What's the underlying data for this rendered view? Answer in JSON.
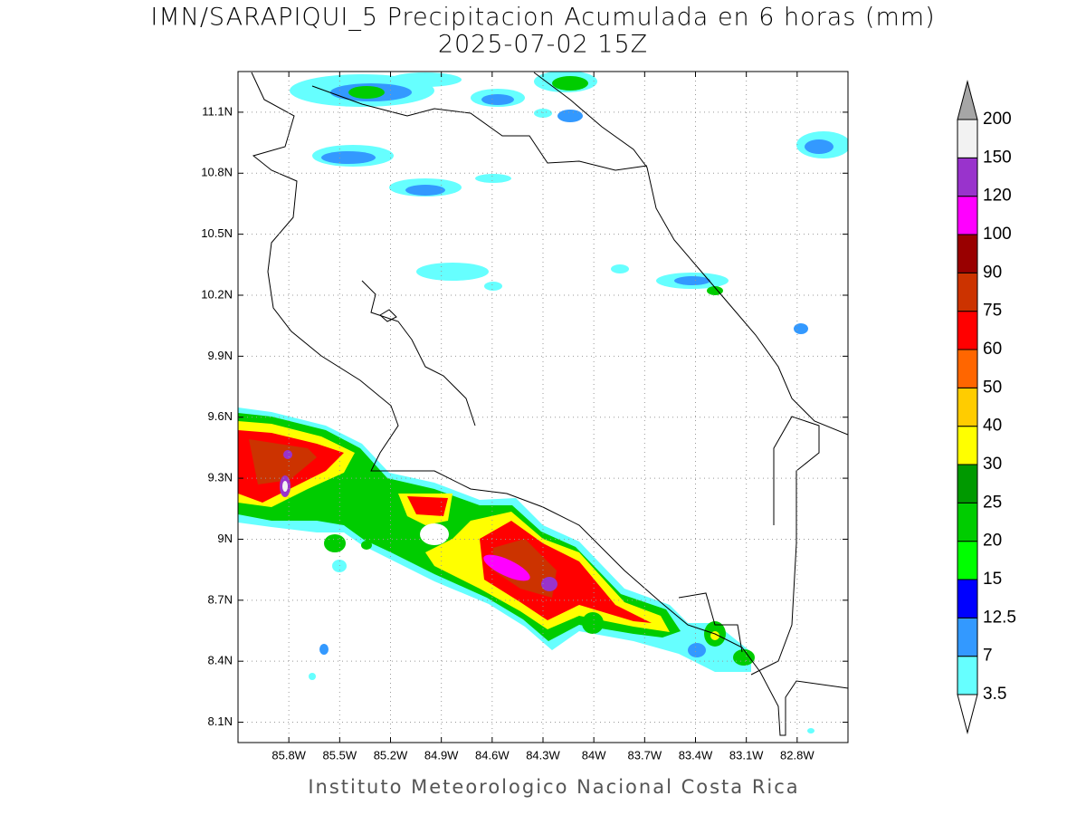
{
  "chart_data": {
    "type": "map",
    "title": "IMN/SARAPIQUI_5 Precipitacion Acumulada en 6 horas (mm)",
    "subtitle": "2025-07-02 15Z",
    "footer": "Instituto Meteorologico Nacional Costa Rica",
    "xlim": [
      -86.1,
      -82.5
    ],
    "ylim": [
      8.0,
      11.3
    ],
    "xticks": [
      {
        "value": -85.8,
        "label": "85.8W"
      },
      {
        "value": -85.5,
        "label": "85.5W"
      },
      {
        "value": -85.2,
        "label": "85.2W"
      },
      {
        "value": -84.9,
        "label": "84.9W"
      },
      {
        "value": -84.6,
        "label": "84.6W"
      },
      {
        "value": -84.3,
        "label": "84.3W"
      },
      {
        "value": -84.0,
        "label": "84W"
      },
      {
        "value": -83.7,
        "label": "83.7W"
      },
      {
        "value": -83.4,
        "label": "83.4W"
      },
      {
        "value": -83.1,
        "label": "83.1W"
      },
      {
        "value": -82.8,
        "label": "82.8W"
      }
    ],
    "yticks": [
      {
        "value": 8.1,
        "label": "8.1N"
      },
      {
        "value": 8.4,
        "label": "8.4N"
      },
      {
        "value": 8.7,
        "label": "8.7N"
      },
      {
        "value": 9.0,
        "label": "9N"
      },
      {
        "value": 9.3,
        "label": "9.3N"
      },
      {
        "value": 9.6,
        "label": "9.6N"
      },
      {
        "value": 9.9,
        "label": "9.9N"
      },
      {
        "value": 10.2,
        "label": "10.2N"
      },
      {
        "value": 10.5,
        "label": "10.5N"
      },
      {
        "value": 10.8,
        "label": "10.8N"
      },
      {
        "value": 11.1,
        "label": "11.1N"
      }
    ],
    "grid": true,
    "colorbar": {
      "levels": [
        3.5,
        7,
        12.5,
        15,
        20,
        25,
        30,
        40,
        50,
        60,
        75,
        90,
        100,
        120,
        150,
        200
      ],
      "colors": [
        "#66ffff",
        "#3399ff",
        "#0000ff",
        "#00ff00",
        "#00cc00",
        "#009900",
        "#ffff00",
        "#ffcc00",
        "#ff6600",
        "#ff0000",
        "#cc3300",
        "#990000",
        "#ff00ff",
        "#9933cc",
        "#f2f2f2"
      ],
      "below_color": "#ffffff",
      "above_color": "#a6a6a6"
    }
  }
}
